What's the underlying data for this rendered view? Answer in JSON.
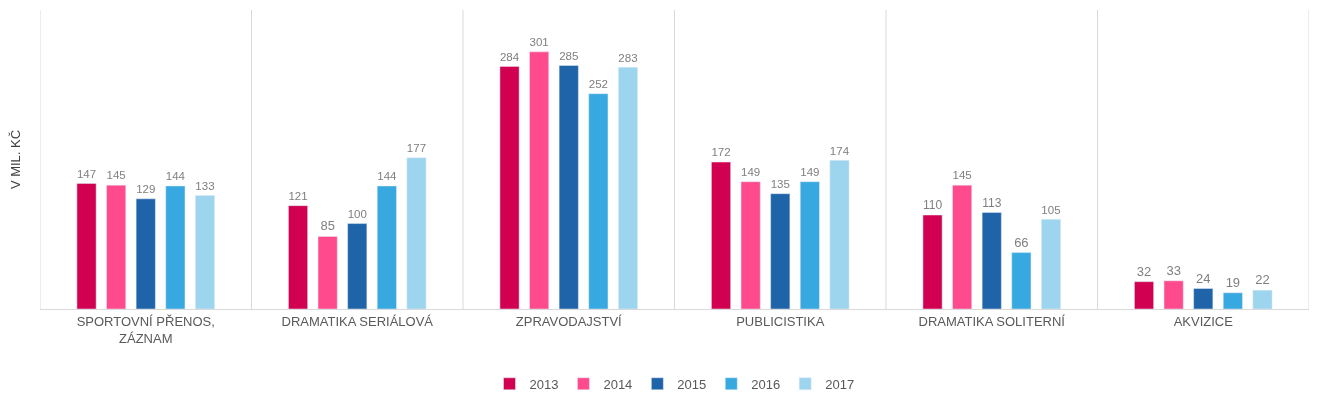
{
  "chart_data": {
    "type": "bar",
    "ylabel": "V MIL. KČ",
    "categories": [
      "SPORTOVNÍ PŘENOS, ZÁZNAM",
      "DRAMATIKA SERIÁLOVÁ",
      "ZPRAVODAJSTVÍ",
      "PUBLICISTIKA",
      "DRAMATIKA SOLITERNÍ",
      "AKVIZICE"
    ],
    "series": [
      {
        "name": "2013",
        "color": "#d20050",
        "values": [
          147,
          121,
          284,
          172,
          110,
          32
        ]
      },
      {
        "name": "2014",
        "color": "#ff4a8d",
        "values": [
          145,
          85,
          301,
          149,
          145,
          33
        ]
      },
      {
        "name": "2015",
        "color": "#1f63a8",
        "values": [
          129,
          100,
          285,
          135,
          113,
          24
        ]
      },
      {
        "name": "2016",
        "color": "#38a8e0",
        "values": [
          144,
          144,
          252,
          149,
          66,
          19
        ]
      },
      {
        "name": "2017",
        "color": "#9dd4ee",
        "values": [
          133,
          177,
          283,
          174,
          105,
          22
        ]
      }
    ],
    "ylim": [
      0,
      350
    ],
    "data_labels": true,
    "grid": "x",
    "legend": "bottom"
  }
}
